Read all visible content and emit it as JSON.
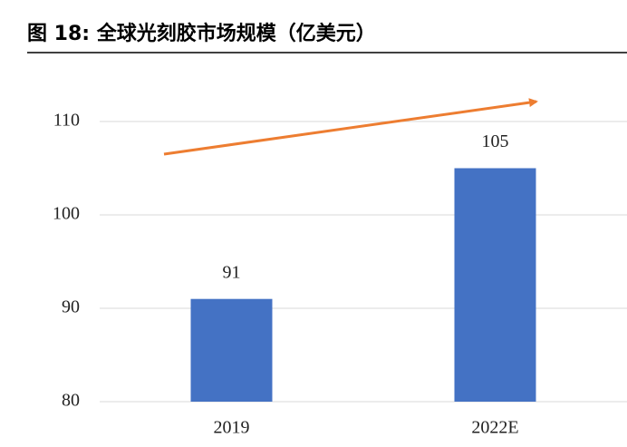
{
  "chart_data": {
    "type": "bar",
    "title": "图 18:  全球光刻胶市场规模（亿美元）",
    "categories": [
      "2019",
      "2022E"
    ],
    "values": [
      91,
      105
    ],
    "color": "#4472c4",
    "ylim": [
      80,
      115
    ],
    "yticks": [
      80,
      90,
      100,
      110
    ],
    "grid": true
  }
}
